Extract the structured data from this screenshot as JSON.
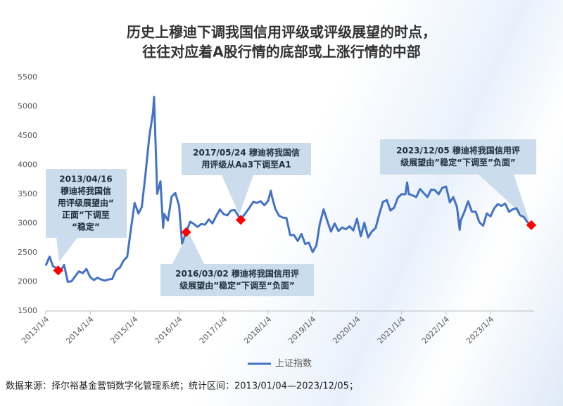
{
  "chart_data": {
    "type": "line",
    "title": [
      "历史上穆迪下调我国信用评级或评级展望的时点，",
      "往往对应着A股行情的底部或上涨行情的中部"
    ],
    "x": [
      "2013/1/4",
      "2013/2/4",
      "2013/3/4",
      "2013/4/4",
      "2013/4/16",
      "2013/5/4",
      "2013/6/4",
      "2013/7/4",
      "2013/8/4",
      "2013/9/4",
      "2013/10/4",
      "2013/11/4",
      "2013/12/4",
      "2014/1/4",
      "2014/2/4",
      "2014/3/4",
      "2014/4/4",
      "2014/5/4",
      "2014/6/4",
      "2014/7/4",
      "2014/8/4",
      "2014/9/4",
      "2014/10/4",
      "2014/11/4",
      "2014/12/4",
      "2015/1/4",
      "2015/2/4",
      "2015/3/4",
      "2015/4/4",
      "2015/5/4",
      "2015/6/4",
      "2015/6/12",
      "2015/7/8",
      "2015/8/4",
      "2015/8/26",
      "2015/9/4",
      "2015/10/4",
      "2015/11/4",
      "2015/12/4",
      "2016/1/4",
      "2016/1/28",
      "2016/3/2",
      "2016/4/4",
      "2016/5/4",
      "2016/6/4",
      "2016/7/4",
      "2016/8/4",
      "2016/9/4",
      "2016/10/4",
      "2016/11/4",
      "2016/12/4",
      "2017/1/4",
      "2017/2/4",
      "2017/3/4",
      "2017/4/4",
      "2017/5/4",
      "2017/5/24",
      "2017/6/4",
      "2017/7/4",
      "2017/8/4",
      "2017/9/4",
      "2017/10/4",
      "2017/11/4",
      "2017/12/4",
      "2018/1/4",
      "2018/1/26",
      "2018/2/4",
      "2018/3/4",
      "2018/4/4",
      "2018/5/4",
      "2018/6/4",
      "2018/7/4",
      "2018/8/4",
      "2018/9/4",
      "2018/10/4",
      "2018/11/4",
      "2018/12/4",
      "2019/1/4",
      "2019/2/4",
      "2019/3/4",
      "2019/4/4",
      "2019/5/4",
      "2019/6/4",
      "2019/7/4",
      "2019/8/4",
      "2019/9/4",
      "2019/10/4",
      "2019/11/4",
      "2019/12/4",
      "2020/1/4",
      "2020/2/4",
      "2020/3/4",
      "2020/4/4",
      "2020/5/4",
      "2020/6/4",
      "2020/7/4",
      "2020/8/4",
      "2020/9/4",
      "2020/10/4",
      "2020/11/4",
      "2020/12/4",
      "2021/1/4",
      "2021/2/4",
      "2021/2/18",
      "2021/3/4",
      "2021/4/4",
      "2021/5/4",
      "2021/6/4",
      "2021/7/4",
      "2021/8/4",
      "2021/9/4",
      "2021/10/4",
      "2021/11/4",
      "2021/12/4",
      "2022/1/4",
      "2022/2/4",
      "2022/3/4",
      "2022/4/4",
      "2022/4/26",
      "2022/5/4",
      "2022/6/4",
      "2022/7/4",
      "2022/8/4",
      "2022/9/4",
      "2022/10/4",
      "2022/11/4",
      "2022/12/4",
      "2023/1/4",
      "2023/2/4",
      "2023/3/4",
      "2023/4/4",
      "2023/5/4",
      "2023/6/4",
      "2023/7/4",
      "2023/8/4",
      "2023/9/4",
      "2023/10/4",
      "2023/11/4",
      "2023/12/5"
    ],
    "series": [
      {
        "name": "上证指数",
        "color": "#4472c4",
        "values": [
          2276,
          2430,
          2270,
          2230,
          2195,
          2180,
          2290,
          2000,
          2010,
          2100,
          2180,
          2150,
          2220,
          2080,
          2030,
          2070,
          2040,
          2020,
          2040,
          2050,
          2200,
          2240,
          2360,
          2430,
          2900,
          3350,
          3170,
          3280,
          3860,
          4480,
          4910,
          5166,
          3507,
          3720,
          2927,
          3160,
          3050,
          3460,
          3520,
          3300,
          2656,
          2850,
          3030,
          2990,
          2940,
          2990,
          2980,
          3070,
          3000,
          3130,
          3240,
          3158,
          3140,
          3220,
          3230,
          3130,
          3060,
          3100,
          3180,
          3270,
          3370,
          3350,
          3380,
          3310,
          3385,
          3560,
          3460,
          3250,
          3130,
          3100,
          3090,
          2800,
          2800,
          2700,
          2820,
          2650,
          2670,
          2510,
          2620,
          2990,
          3240,
          3050,
          2860,
          3000,
          2870,
          2930,
          2900,
          2950,
          2880,
          3080,
          2780,
          3010,
          2760,
          2860,
          2920,
          3150,
          3370,
          3400,
          3220,
          3270,
          3440,
          3500,
          3500,
          3700,
          3500,
          3480,
          3450,
          3590,
          3520,
          3450,
          3580,
          3570,
          3500,
          3610,
          3630,
          3360,
          3450,
          3280,
          2890,
          3050,
          3200,
          3380,
          3200,
          3200,
          3020,
          2960,
          3170,
          3120,
          3260,
          3330,
          3300,
          3340,
          3200,
          3240,
          3260,
          3140,
          3110,
          3020,
          2970
        ]
      }
    ],
    "highlights": {
      "x": [
        "2013/04/16",
        "2016/03/02",
        "2017/05/24",
        "2023/12/05"
      ],
      "values": [
        2195,
        2850,
        3060,
        2970
      ],
      "color": "#ff0000"
    },
    "annotations": [
      {
        "lines": [
          "2013/04/16",
          "穆迪将我国信",
          "用评级展望由“",
          "正面”下调至",
          "“稳定”"
        ]
      },
      {
        "lines": [
          "2016/03/02 穆迪将我国信用评",
          "级展望由”稳定“下调至“负面”"
        ]
      },
      {
        "lines": [
          "2017/05/24 穆迪将我国信",
          "用评级从Aa3下调至A1"
        ]
      },
      {
        "lines": [
          "2023/12/05 穆迪将我国信用评",
          "级展望由”稳定“下调至”负面”"
        ]
      }
    ],
    "xlim": [
      "2013/1/4",
      "2023/12/5"
    ],
    "xticks": [
      "2013/1/4",
      "2014/1/4",
      "2015/1/4",
      "2016/1/4",
      "2017/1/4",
      "2018/1/4",
      "2019/1/4",
      "2020/1/4",
      "2021/1/4",
      "2022/1/4",
      "2023/1/4"
    ],
    "ylim": [
      1500,
      5500
    ],
    "yticks": [
      1500,
      2000,
      2500,
      3000,
      3500,
      4000,
      4500,
      5000,
      5500
    ],
    "legend": "bottom",
    "source": "数据来源：择尔裕基金营销数字化管理系统；统计区间：2013/01/04—2023/12/05；"
  }
}
